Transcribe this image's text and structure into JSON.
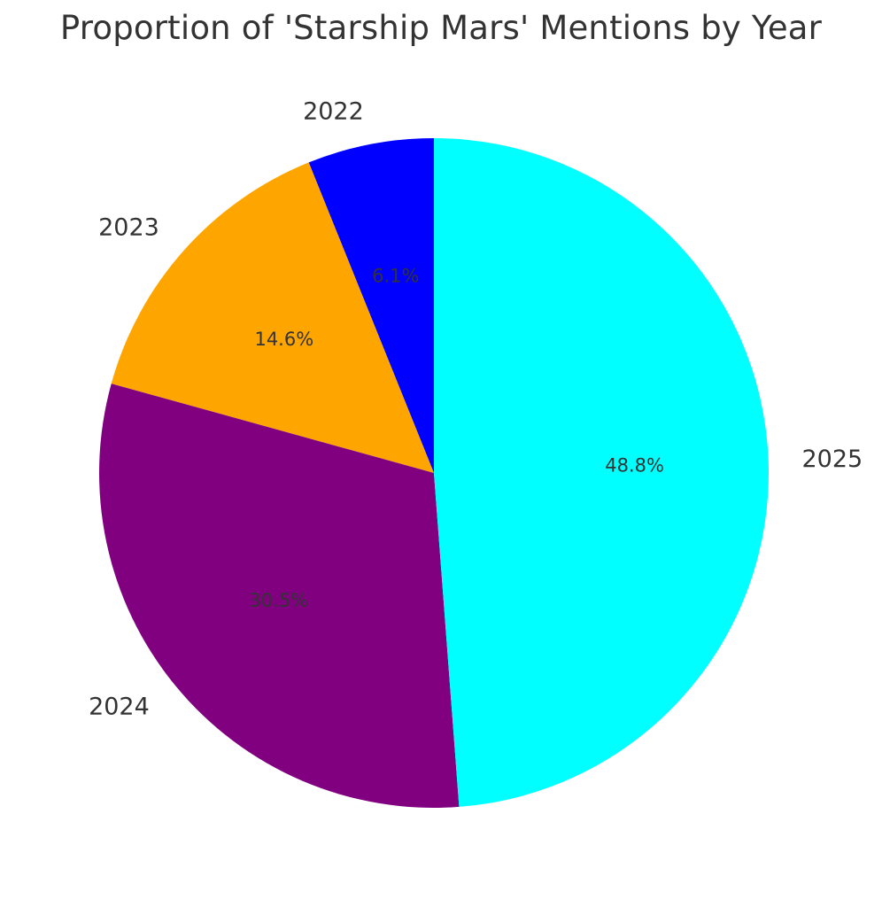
{
  "chart_data": {
    "type": "pie",
    "title": "Proportion of 'Starship Mars' Mentions by Year",
    "labels": [
      "2022",
      "2023",
      "2024",
      "2025"
    ],
    "values": [
      6.1,
      14.6,
      30.5,
      48.8
    ],
    "value_labels": [
      "6.1%",
      "14.6%",
      "30.5%",
      "48.8%"
    ],
    "colors": [
      "#0000ff",
      "#ffa500",
      "#800080",
      "#00ffff"
    ],
    "start_angle_deg": 90,
    "direction": "counterclockwise",
    "legend": "none"
  }
}
